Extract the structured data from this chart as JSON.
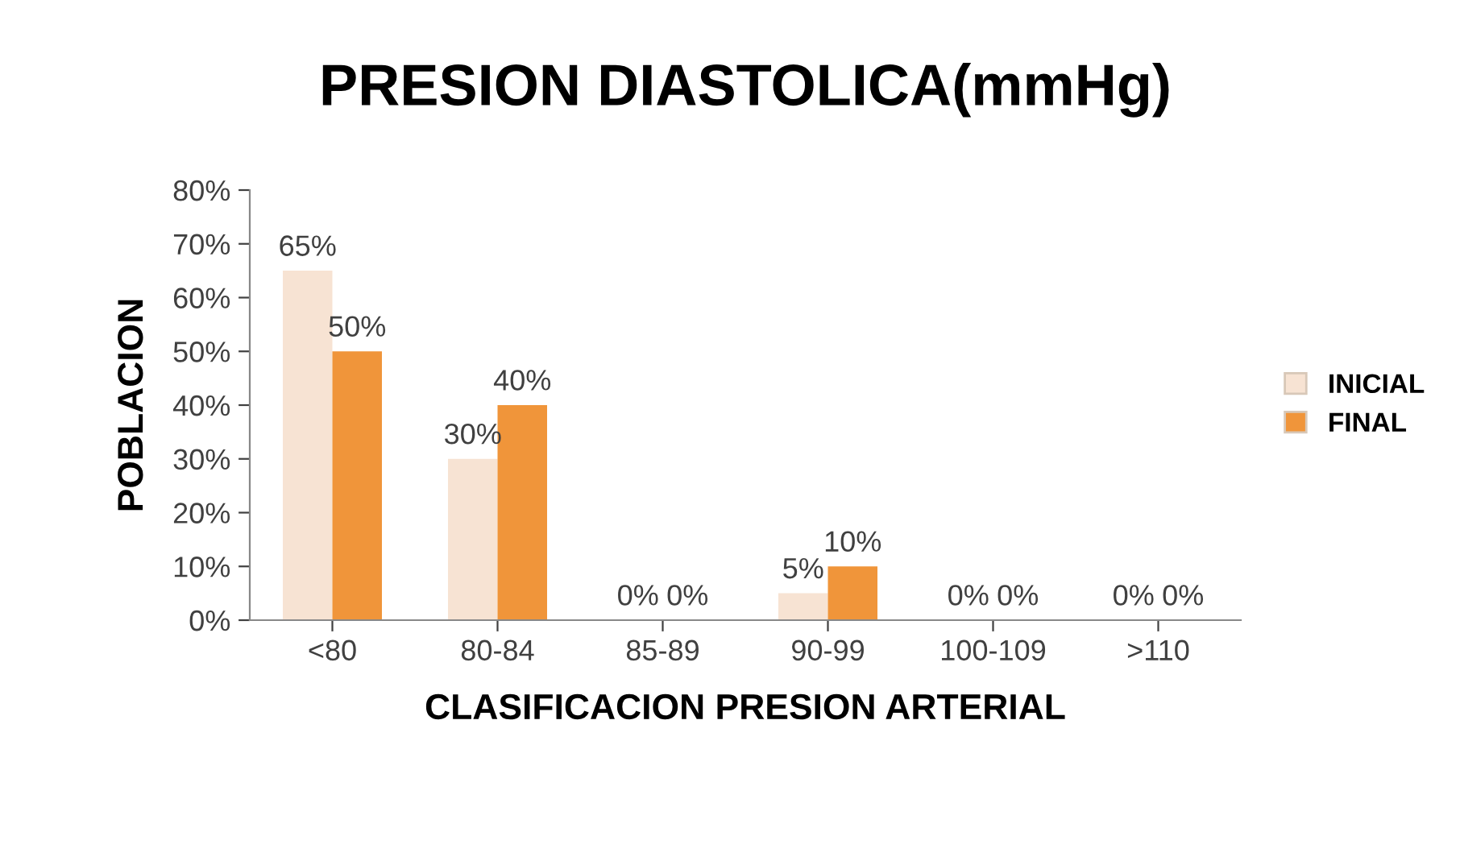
{
  "chart_data": {
    "type": "bar",
    "title": "PRESION DIASTOLICA(mmHg)",
    "xlabel": "CLASIFICACION PRESION ARTERIAL",
    "ylabel": "POBLACION",
    "categories": [
      "<80",
      "80-84",
      "85-89",
      "90-99",
      "100-109",
      ">110"
    ],
    "series": [
      {
        "name": "INICIAL",
        "color": "#f7e3d3",
        "values": [
          65,
          30,
          0,
          5,
          0,
          0
        ],
        "value_labels": [
          "65%",
          "30%",
          "0%",
          "5%",
          "0%",
          "0%"
        ]
      },
      {
        "name": "FINAL",
        "color": "#f0953a",
        "values": [
          50,
          40,
          0,
          10,
          0,
          0
        ],
        "value_labels": [
          "50%",
          "40%",
          "0%",
          "10%",
          "0%",
          "0%"
        ]
      }
    ],
    "ylim": [
      0,
      80
    ],
    "yticks": [
      {
        "value": 0,
        "label": "0%"
      },
      {
        "value": 10,
        "label": "10%"
      },
      {
        "value": 20,
        "label": "20%"
      },
      {
        "value": 30,
        "label": "30%"
      },
      {
        "value": 40,
        "label": "40%"
      },
      {
        "value": 50,
        "label": "50%"
      },
      {
        "value": 60,
        "label": "60%"
      },
      {
        "value": 70,
        "label": "70%"
      },
      {
        "value": 80,
        "label": "80%"
      }
    ],
    "grid": false,
    "legend": "right"
  }
}
